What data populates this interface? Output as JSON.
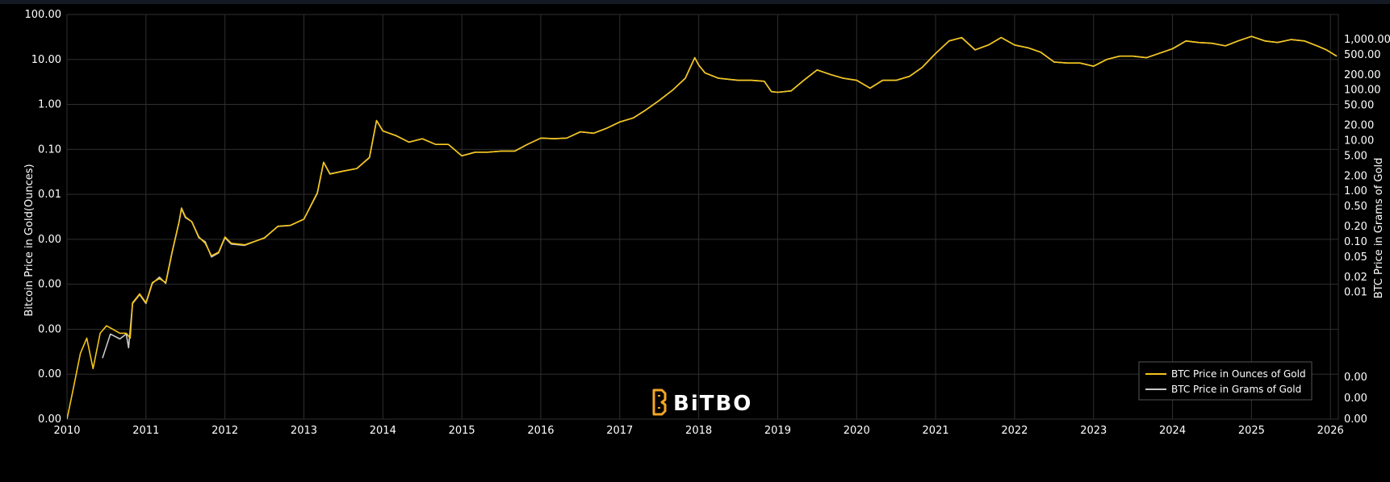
{
  "chart_data": {
    "type": "line",
    "ylabel_left": "Bitcoin Price in Gold(Ounces)",
    "ylabel_right": "BTC Price in Grams of Gold",
    "y_scale": "log",
    "grid": true,
    "legend_position": "bottom-right",
    "brand": "BiTBO",
    "x_ticks": [
      "2010",
      "2011",
      "2012",
      "2013",
      "2014",
      "2015",
      "2016",
      "2017",
      "2018",
      "2019",
      "2020",
      "2021",
      "2022",
      "2023",
      "2024",
      "2025",
      "2026"
    ],
    "left_y_tick_labels": [
      "0.00",
      "0.00",
      "0.00",
      "0.00",
      "0.00",
      "0.01",
      "0.10",
      "1.00",
      "10.00",
      "100.00"
    ],
    "right_y_tick_labels": [
      "0.00",
      "0.00",
      "0.00",
      "0.01",
      "0.02",
      "0.05",
      "0.10",
      "0.20",
      "0.50",
      "1.00",
      "2.00",
      "5.00",
      "10.00",
      "20.00",
      "50.00",
      "100.00",
      "200.00",
      "500.00",
      "1,000.00"
    ],
    "xlim": [
      2010,
      2026.1
    ],
    "ylim_ounces": [
      1e-06,
      100
    ],
    "colors": {
      "ounces": "#f5c518",
      "grams": "#c8c8c8"
    },
    "series": [
      {
        "name": "BTC Price in Ounces of Gold",
        "unit": "ounces",
        "points": [
          [
            2010.0,
            1e-06
          ],
          [
            2010.08,
            4e-06
          ],
          [
            2010.17,
            2e-05
          ],
          [
            2010.25,
            4e-05
          ],
          [
            2010.33,
            1e-05
          ],
          [
            2010.42,
            5e-05
          ],
          [
            2010.5,
            7e-05
          ],
          [
            2010.58,
            6e-05
          ],
          [
            2010.67,
            5e-05
          ],
          [
            2010.75,
            5e-05
          ],
          [
            2010.8,
            4e-05
          ],
          [
            2010.83,
            0.0002
          ],
          [
            2010.92,
            0.0003
          ],
          [
            2011.0,
            0.0002
          ],
          [
            2011.08,
            0.0005
          ],
          [
            2011.17,
            0.0006
          ],
          [
            2011.25,
            0.0005
          ],
          [
            2011.33,
            0.002
          ],
          [
            2011.42,
            0.008
          ],
          [
            2011.45,
            0.015
          ],
          [
            2011.5,
            0.01
          ],
          [
            2011.58,
            0.008
          ],
          [
            2011.67,
            0.004
          ],
          [
            2011.75,
            0.003
          ],
          [
            2011.83,
            0.0017
          ],
          [
            2011.92,
            0.002
          ],
          [
            2012.0,
            0.004
          ],
          [
            2012.08,
            0.003
          ],
          [
            2012.25,
            0.0028
          ],
          [
            2012.5,
            0.0038
          ],
          [
            2012.67,
            0.0065
          ],
          [
            2012.83,
            0.0068
          ],
          [
            2013.0,
            0.009
          ],
          [
            2013.17,
            0.03
          ],
          [
            2013.25,
            0.12
          ],
          [
            2013.33,
            0.07
          ],
          [
            2013.5,
            0.08
          ],
          [
            2013.67,
            0.09
          ],
          [
            2013.83,
            0.15
          ],
          [
            2013.92,
            0.8
          ],
          [
            2014.0,
            0.5
          ],
          [
            2014.17,
            0.4
          ],
          [
            2014.33,
            0.3
          ],
          [
            2014.5,
            0.35
          ],
          [
            2014.67,
            0.27
          ],
          [
            2014.83,
            0.27
          ],
          [
            2015.0,
            0.16
          ],
          [
            2015.17,
            0.19
          ],
          [
            2015.33,
            0.19
          ],
          [
            2015.5,
            0.2
          ],
          [
            2015.67,
            0.2
          ],
          [
            2015.83,
            0.27
          ],
          [
            2016.0,
            0.36
          ],
          [
            2016.17,
            0.35
          ],
          [
            2016.33,
            0.36
          ],
          [
            2016.5,
            0.48
          ],
          [
            2016.67,
            0.45
          ],
          [
            2016.83,
            0.56
          ],
          [
            2017.0,
            0.75
          ],
          [
            2017.17,
            0.9
          ],
          [
            2017.33,
            1.3
          ],
          [
            2017.5,
            2.0
          ],
          [
            2017.67,
            3.2
          ],
          [
            2017.83,
            5.5
          ],
          [
            2017.95,
            14.0
          ],
          [
            2018.0,
            10.0
          ],
          [
            2018.08,
            7.0
          ],
          [
            2018.25,
            5.5
          ],
          [
            2018.5,
            5.0
          ],
          [
            2018.67,
            5.0
          ],
          [
            2018.83,
            4.8
          ],
          [
            2018.92,
            3.0
          ],
          [
            2019.0,
            2.9
          ],
          [
            2019.17,
            3.1
          ],
          [
            2019.33,
            5.0
          ],
          [
            2019.5,
            8.0
          ],
          [
            2019.67,
            6.5
          ],
          [
            2019.83,
            5.5
          ],
          [
            2020.0,
            5.0
          ],
          [
            2020.17,
            3.5
          ],
          [
            2020.33,
            5.0
          ],
          [
            2020.5,
            5.0
          ],
          [
            2020.67,
            6.0
          ],
          [
            2020.83,
            9.0
          ],
          [
            2021.0,
            17.0
          ],
          [
            2021.17,
            30.0
          ],
          [
            2021.33,
            35.0
          ],
          [
            2021.5,
            20.0
          ],
          [
            2021.67,
            25.0
          ],
          [
            2021.83,
            35.0
          ],
          [
            2022.0,
            25.0
          ],
          [
            2022.17,
            22.0
          ],
          [
            2022.33,
            18.0
          ],
          [
            2022.5,
            11.5
          ],
          [
            2022.67,
            11.0
          ],
          [
            2022.83,
            11.0
          ],
          [
            2023.0,
            9.5
          ],
          [
            2023.17,
            13.0
          ],
          [
            2023.33,
            15.0
          ],
          [
            2023.5,
            15.0
          ],
          [
            2023.67,
            14.0
          ],
          [
            2023.83,
            17.0
          ],
          [
            2024.0,
            21.0
          ],
          [
            2024.17,
            30.0
          ],
          [
            2024.33,
            28.0
          ],
          [
            2024.5,
            27.0
          ],
          [
            2024.67,
            24.0
          ],
          [
            2024.83,
            30.0
          ],
          [
            2025.0,
            37.0
          ],
          [
            2025.17,
            30.0
          ],
          [
            2025.33,
            28.0
          ],
          [
            2025.5,
            32.0
          ],
          [
            2025.67,
            30.0
          ],
          [
            2025.83,
            24.0
          ],
          [
            2025.95,
            20.0
          ],
          [
            2026.08,
            15.0
          ]
        ]
      },
      {
        "name": "BTC Price in Grams of Gold",
        "unit": "grams",
        "points": [
          [
            2010.45,
            0.0005
          ],
          [
            2010.55,
            0.0015
          ],
          [
            2010.67,
            0.0012
          ],
          [
            2010.75,
            0.0015
          ],
          [
            2010.78,
            0.0008
          ],
          [
            2010.83,
            0.006
          ],
          [
            2010.92,
            0.009
          ],
          [
            2011.0,
            0.006
          ],
          [
            2011.08,
            0.015
          ],
          [
            2011.17,
            0.02
          ],
          [
            2011.25,
            0.015
          ],
          [
            2011.33,
            0.06
          ],
          [
            2011.42,
            0.25
          ],
          [
            2011.45,
            0.45
          ],
          [
            2011.5,
            0.3
          ],
          [
            2011.58,
            0.25
          ],
          [
            2011.67,
            0.12
          ],
          [
            2011.75,
            0.1
          ],
          [
            2011.83,
            0.05
          ],
          [
            2011.92,
            0.06
          ],
          [
            2012.0,
            0.12
          ],
          [
            2012.08,
            0.09
          ],
          [
            2012.25,
            0.085
          ],
          [
            2012.5,
            0.12
          ],
          [
            2012.67,
            0.2
          ],
          [
            2012.83,
            0.21
          ],
          [
            2013.0,
            0.28
          ],
          [
            2013.17,
            0.9
          ],
          [
            2013.25,
            3.7
          ],
          [
            2013.33,
            2.2
          ],
          [
            2013.5,
            2.5
          ],
          [
            2013.67,
            2.8
          ],
          [
            2013.83,
            4.6
          ],
          [
            2013.92,
            25.0
          ],
          [
            2014.0,
            15.5
          ],
          [
            2014.17,
            12.5
          ],
          [
            2014.33,
            9.3
          ],
          [
            2014.5,
            10.9
          ],
          [
            2014.67,
            8.4
          ],
          [
            2014.83,
            8.4
          ],
          [
            2015.0,
            5.0
          ],
          [
            2015.17,
            5.9
          ],
          [
            2015.33,
            5.9
          ],
          [
            2015.5,
            6.2
          ],
          [
            2015.67,
            6.2
          ],
          [
            2015.83,
            8.4
          ],
          [
            2016.0,
            11.2
          ],
          [
            2016.17,
            10.9
          ],
          [
            2016.33,
            11.2
          ],
          [
            2016.5,
            14.9
          ],
          [
            2016.67,
            14.0
          ],
          [
            2016.83,
            17.4
          ],
          [
            2017.0,
            23.3
          ],
          [
            2017.17,
            28.0
          ],
          [
            2017.33,
            40.4
          ],
          [
            2017.5,
            62.2
          ],
          [
            2017.67,
            99.5
          ],
          [
            2017.83,
            171.0
          ],
          [
            2017.95,
            435.0
          ],
          [
            2018.0,
            311.0
          ],
          [
            2018.08,
            218.0
          ],
          [
            2018.25,
            171.0
          ],
          [
            2018.5,
            155.0
          ],
          [
            2018.67,
            155.0
          ],
          [
            2018.83,
            149.0
          ],
          [
            2018.92,
            93.0
          ],
          [
            2019.0,
            90.0
          ],
          [
            2019.17,
            96.0
          ],
          [
            2019.33,
            155.0
          ],
          [
            2019.5,
            249.0
          ],
          [
            2019.67,
            202.0
          ],
          [
            2019.83,
            171.0
          ],
          [
            2020.0,
            155.0
          ],
          [
            2020.17,
            109.0
          ],
          [
            2020.33,
            155.0
          ],
          [
            2020.5,
            155.0
          ],
          [
            2020.67,
            187.0
          ],
          [
            2020.83,
            280.0
          ],
          [
            2021.0,
            529.0
          ],
          [
            2021.17,
            933.0
          ],
          [
            2021.33,
            1088.0
          ],
          [
            2021.5,
            622.0
          ],
          [
            2021.67,
            778.0
          ],
          [
            2021.83,
            1088.0
          ],
          [
            2022.0,
            778.0
          ],
          [
            2022.17,
            684.0
          ],
          [
            2022.33,
            560.0
          ],
          [
            2022.5,
            358.0
          ],
          [
            2022.67,
            342.0
          ],
          [
            2022.83,
            342.0
          ],
          [
            2023.0,
            295.0
          ],
          [
            2023.17,
            404.0
          ],
          [
            2023.33,
            467.0
          ],
          [
            2023.5,
            467.0
          ],
          [
            2023.67,
            435.0
          ],
          [
            2023.83,
            529.0
          ],
          [
            2024.0,
            653.0
          ],
          [
            2024.17,
            933.0
          ],
          [
            2024.33,
            871.0
          ],
          [
            2024.5,
            840.0
          ],
          [
            2024.67,
            746.0
          ],
          [
            2024.83,
            933.0
          ],
          [
            2025.0,
            1151.0
          ],
          [
            2025.17,
            933.0
          ],
          [
            2025.33,
            871.0
          ],
          [
            2025.5,
            995.0
          ],
          [
            2025.67,
            933.0
          ],
          [
            2025.83,
            746.0
          ],
          [
            2025.95,
            622.0
          ],
          [
            2026.08,
            467.0
          ]
        ]
      }
    ]
  }
}
